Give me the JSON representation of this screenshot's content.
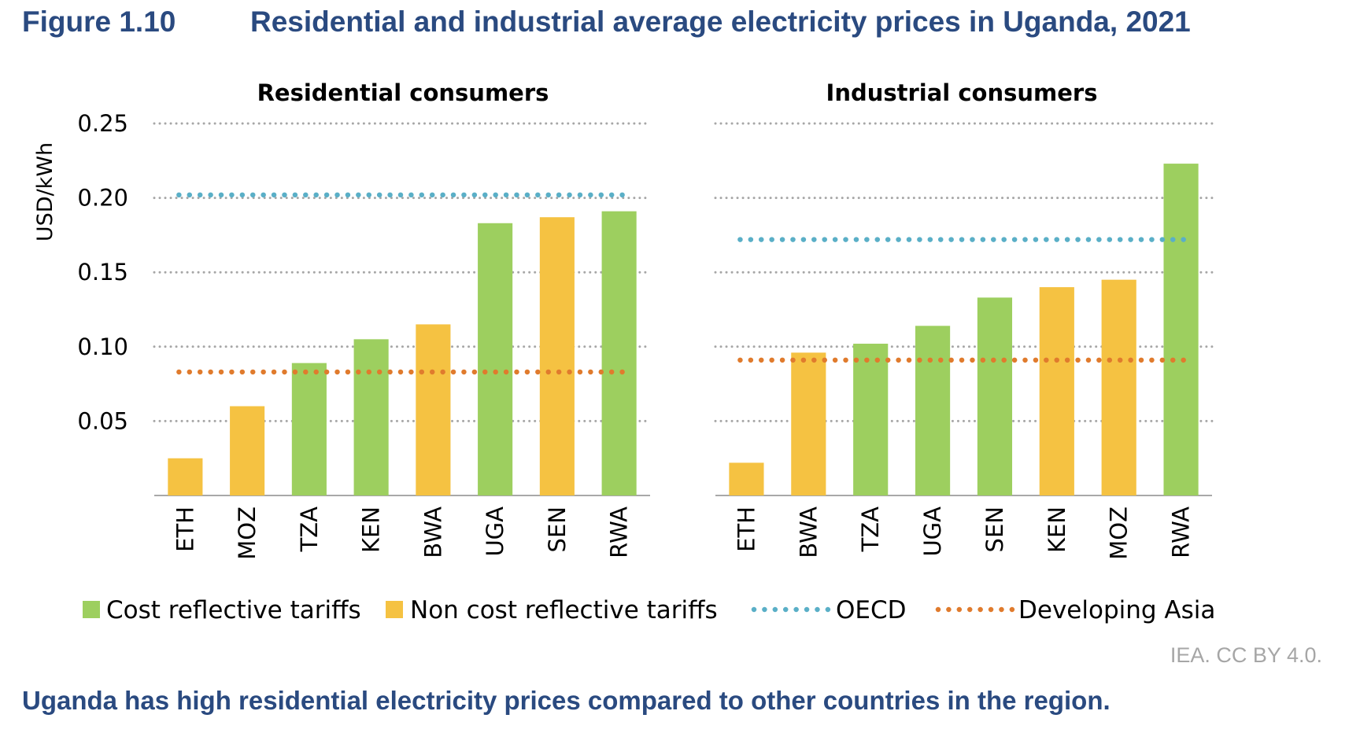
{
  "figure": {
    "label": "Figure 1.10",
    "title": "Residential and industrial average electricity prices in Uganda, 2021",
    "caption": "Uganda has high residential electricity prices compared to other countries in the region.",
    "credit": "IEA. CC BY 4.0."
  },
  "colors": {
    "cost_reflective": "#9dcf5f",
    "non_cost_reflective": "#f5c242",
    "oecd": "#5aafc7",
    "developing_asia": "#e07b2d",
    "grid": "#a6a6a6",
    "title_blue": "#2a4a80"
  },
  "legend": [
    {
      "key": "cost_reflective",
      "label": "Cost reflective tariffs",
      "kind": "box"
    },
    {
      "key": "non_cost_reflective",
      "label": "Non cost reflective tariffs",
      "kind": "box"
    },
    {
      "key": "oecd",
      "label": "OECD",
      "kind": "dots"
    },
    {
      "key": "developing_asia",
      "label": "Developing Asia",
      "kind": "dots"
    }
  ],
  "chart_data": [
    {
      "type": "bar",
      "title": "Residential consumers",
      "ylabel": "USD/kWh",
      "ylim": [
        0,
        0.25
      ],
      "yticks": [
        "0.05",
        "0.10",
        "0.15",
        "0.20",
        "0.25"
      ],
      "grid": true,
      "legend_position": "bottom",
      "categories": [
        "ETH",
        "MOZ",
        "TZA",
        "KEN",
        "BWA",
        "UGA",
        "SEN",
        "RWA"
      ],
      "values": [
        0.025,
        0.06,
        0.089,
        0.105,
        0.115,
        0.183,
        0.187,
        0.191
      ],
      "tariff": [
        "non_cost_reflective",
        "non_cost_reflective",
        "cost_reflective",
        "cost_reflective",
        "non_cost_reflective",
        "cost_reflective",
        "non_cost_reflective",
        "cost_reflective"
      ],
      "reference_lines": [
        {
          "series": "OECD",
          "key": "oecd",
          "value": 0.202
        },
        {
          "series": "Developing Asia",
          "key": "developing_asia",
          "value": 0.083
        }
      ]
    },
    {
      "type": "bar",
      "title": "Industrial consumers",
      "ylim": [
        0,
        0.25
      ],
      "grid": true,
      "legend_position": "bottom",
      "categories": [
        "ETH",
        "BWA",
        "TZA",
        "UGA",
        "SEN",
        "KEN",
        "MOZ",
        "RWA"
      ],
      "values": [
        0.022,
        0.096,
        0.102,
        0.114,
        0.133,
        0.14,
        0.145,
        0.223
      ],
      "tariff": [
        "non_cost_reflective",
        "non_cost_reflective",
        "cost_reflective",
        "cost_reflective",
        "cost_reflective",
        "non_cost_reflective",
        "non_cost_reflective",
        "cost_reflective"
      ],
      "reference_lines": [
        {
          "series": "OECD",
          "key": "oecd",
          "value": 0.172
        },
        {
          "series": "Developing Asia",
          "key": "developing_asia",
          "value": 0.091
        }
      ]
    }
  ]
}
